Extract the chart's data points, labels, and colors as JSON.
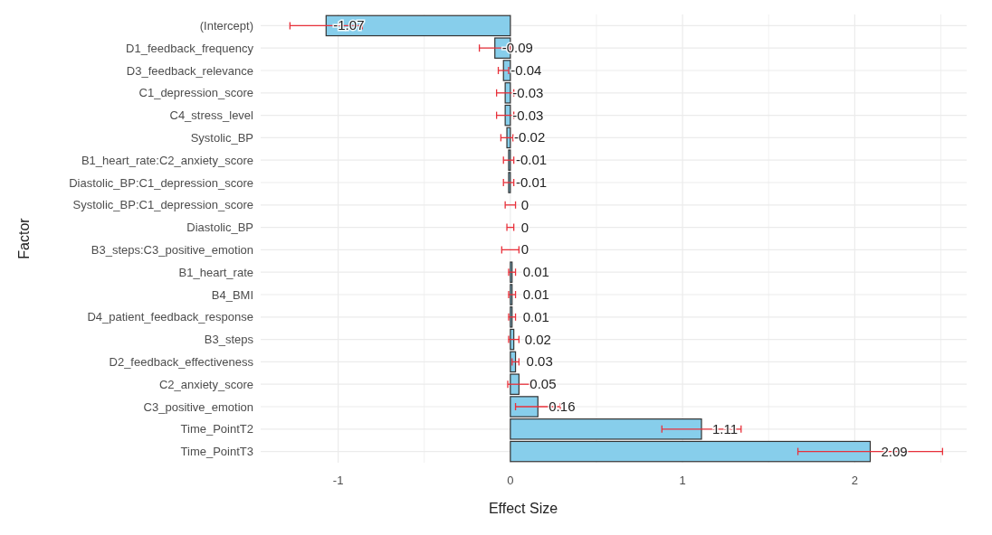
{
  "chart_data": {
    "type": "bar",
    "orientation": "horizontal",
    "xlabel": "Effect Size",
    "ylabel": "Factor",
    "categories": [
      "(Intercept)",
      "D1_feedback_frequency",
      "D3_feedback_relevance",
      "C1_depression_score",
      "C4_stress_level",
      "Systolic_BP",
      "B1_heart_rate:C2_anxiety_score",
      "Diastolic_BP:C1_depression_score",
      "Systolic_BP:C1_depression_score",
      "Diastolic_BP",
      "B3_steps:C3_positive_emotion",
      "B1_heart_rate",
      "B4_BMI",
      "D4_patient_feedback_response",
      "B3_steps",
      "D2_feedback_effectiveness",
      "C2_anxiety_score",
      "C3_positive_emotion",
      "Time_PointT2",
      "Time_PointT3"
    ],
    "values": [
      -1.07,
      -0.09,
      -0.04,
      -0.03,
      -0.03,
      -0.02,
      -0.01,
      -0.01,
      0,
      0,
      0,
      0.01,
      0.01,
      0.01,
      0.02,
      0.03,
      0.05,
      0.16,
      1.11,
      2.09
    ],
    "errors": [
      0.21,
      0.09,
      0.03,
      0.05,
      0.05,
      0.035,
      0.03,
      0.03,
      0.03,
      0.02,
      0.05,
      0.02,
      0.02,
      0.02,
      0.03,
      0.02,
      0.065,
      0.13,
      0.23,
      0.42
    ],
    "color": "#87ceeb",
    "data_labels": true,
    "xlim": [
      -1.45,
      2.65
    ],
    "xticks": [
      -1,
      {
        "value": -0.5,
        "label": null
      },
      0,
      {
        "value": 0.5,
        "label": null
      },
      1,
      {
        "value": 1.5,
        "label": null
      },
      2,
      {
        "value": 2.5,
        "label": null
      }
    ],
    "grid": true
  }
}
